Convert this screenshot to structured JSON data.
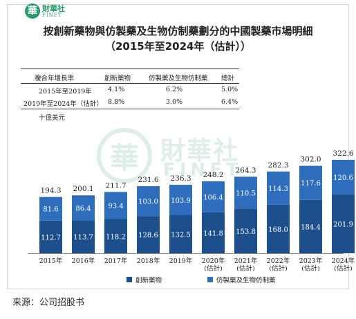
{
  "logo": {
    "mark": "華",
    "name": "財華社",
    "en": "FINET"
  },
  "watermark": {
    "mark": "華",
    "cn": "財華社",
    "en": "FINET"
  },
  "chart_data": {
    "type": "bar",
    "stacked": true,
    "title": "按創新藥物與仿製藥及生物仿制藥劃分的中國製藥市場明細",
    "subtitle": "（2015年至2024年（估計））",
    "unit": "十億美元",
    "categories": [
      [
        "2015年"
      ],
      [
        "2016年"
      ],
      [
        "2017年"
      ],
      [
        "2018年"
      ],
      [
        "2019年"
      ],
      [
        "2020年",
        "(估計)"
      ],
      [
        "2021年",
        "(估計)"
      ],
      [
        "2022年",
        "(估計)"
      ],
      [
        "2023年",
        "(估計)"
      ],
      [
        "2024年",
        "(估計)"
      ]
    ],
    "series": [
      {
        "name": "創新藥物",
        "color": "#1d4f8c",
        "values": [
          112.7,
          113.7,
          118.2,
          128.6,
          132.5,
          141.8,
          153.8,
          168.0,
          184.4,
          201.9
        ]
      },
      {
        "name": "仿製藥及生物仿制藥",
        "color": "#2f6ebd",
        "values": [
          81.6,
          86.4,
          93.4,
          103.0,
          103.9,
          106.4,
          110.5,
          114.3,
          117.6,
          120.6
        ]
      }
    ],
    "totals": [
      194.3,
      200.1,
      211.7,
      231.6,
      236.3,
      248.2,
      264.3,
      282.3,
      302.0,
      322.6
    ],
    "table": {
      "headers": [
        "複合年增長率",
        "創新藥物",
        "仿製藥及生物仿制藥",
        "總計"
      ],
      "rows": [
        [
          "2015年至2019年",
          "4.1%",
          "6.2%",
          "5.0%"
        ],
        [
          "2019年至2024年（估計）",
          "8.8%",
          "3.0%",
          "6.4%"
        ]
      ]
    }
  },
  "source": "来源：公司招股书"
}
